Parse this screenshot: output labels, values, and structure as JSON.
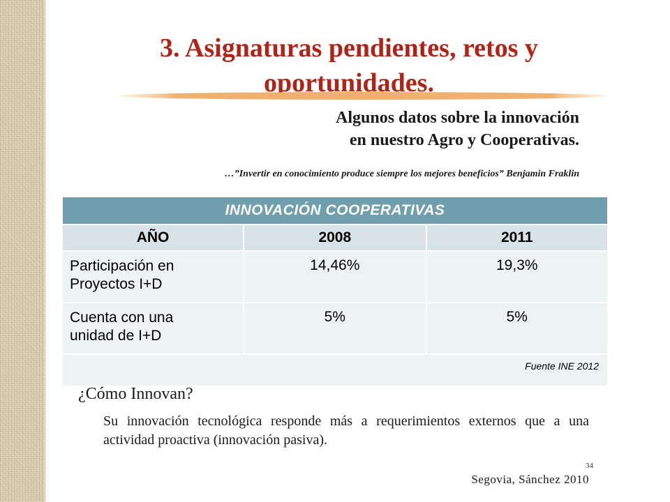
{
  "slide": {
    "title_line1": "3. Asignaturas pendientes, retos y",
    "title_line2": "oportunidades.",
    "subtitle_line1": "Algunos datos sobre la innovación",
    "subtitle_line2": "en nuestro Agro y Cooperativas.",
    "quote": "…”Invertir en conocimiento produce siempre los mejores beneficios” Benjamin Fraklin",
    "accent_color": "#b02418",
    "underline_color": "#f0b070"
  },
  "table": {
    "header": "INNOVACIÓN   COOPERATIVAS",
    "columns": [
      "AÑO",
      "2008",
      "2011"
    ],
    "rows": [
      {
        "label_line1": "Participación en",
        "label_line2": "Proyectos I+D",
        "v2008": "14,46%",
        "v2011": "19,3%"
      },
      {
        "label_line1": "Cuenta con una",
        "label_line2": "unidad de I+D",
        "v2008": "5%",
        "v2011": "5%"
      }
    ],
    "source": "Fuente INE 2012",
    "header_color": "#6f9eac"
  },
  "innovation": {
    "heading": "¿Cómo Innovan?",
    "body": "Su innovación tecnológica responde más a requerimientos externos que a una actividad proactiva (innovación pasiva)."
  },
  "footer": {
    "page_number": "34",
    "citation": "Segovia, Sánchez 2010"
  }
}
